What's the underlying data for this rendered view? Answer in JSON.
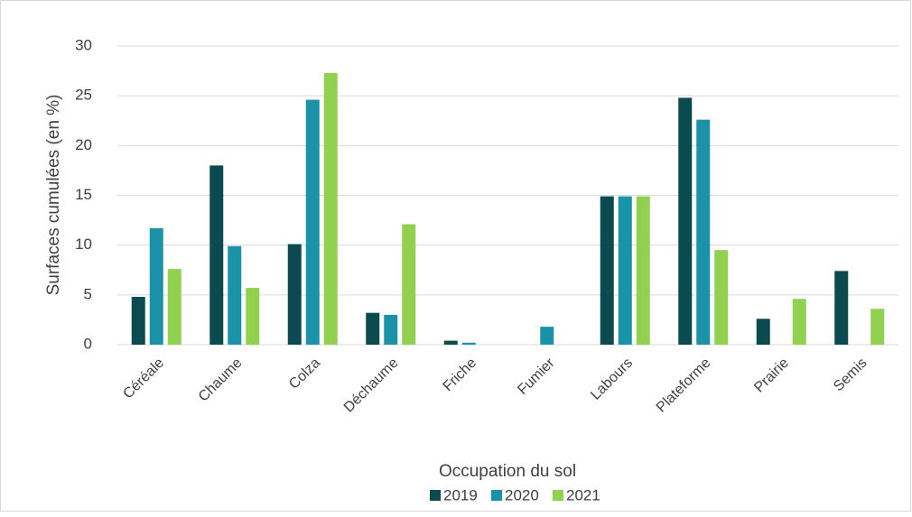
{
  "chart_data": {
    "type": "bar",
    "x_label": "Occupation du sol",
    "y_label": "Surfaces cumulées (en %)",
    "categories": [
      "Céréale",
      "Chaume",
      "Colza",
      "Déchaume",
      "Friche",
      "Fumier",
      "Labours",
      "Plateforme",
      "Prairie",
      "Semis"
    ],
    "series": [
      {
        "name": "2019",
        "color": "#0b4a4f",
        "values": [
          4.8,
          18.0,
          10.1,
          3.2,
          0.4,
          null,
          14.9,
          24.8,
          2.6,
          7.4
        ]
      },
      {
        "name": "2020",
        "color": "#1a93a8",
        "values": [
          11.7,
          9.9,
          24.6,
          3.0,
          0.2,
          1.8,
          14.9,
          22.6,
          null,
          null
        ]
      },
      {
        "name": "2021",
        "color": "#92d050",
        "values": [
          7.6,
          5.7,
          27.3,
          12.1,
          null,
          null,
          14.9,
          9.5,
          4.6,
          3.6
        ]
      }
    ],
    "ylim": [
      0,
      30
    ],
    "yticks": [
      0,
      5,
      10,
      15,
      20,
      25,
      30
    ],
    "grid": true,
    "legend": "bottom"
  }
}
